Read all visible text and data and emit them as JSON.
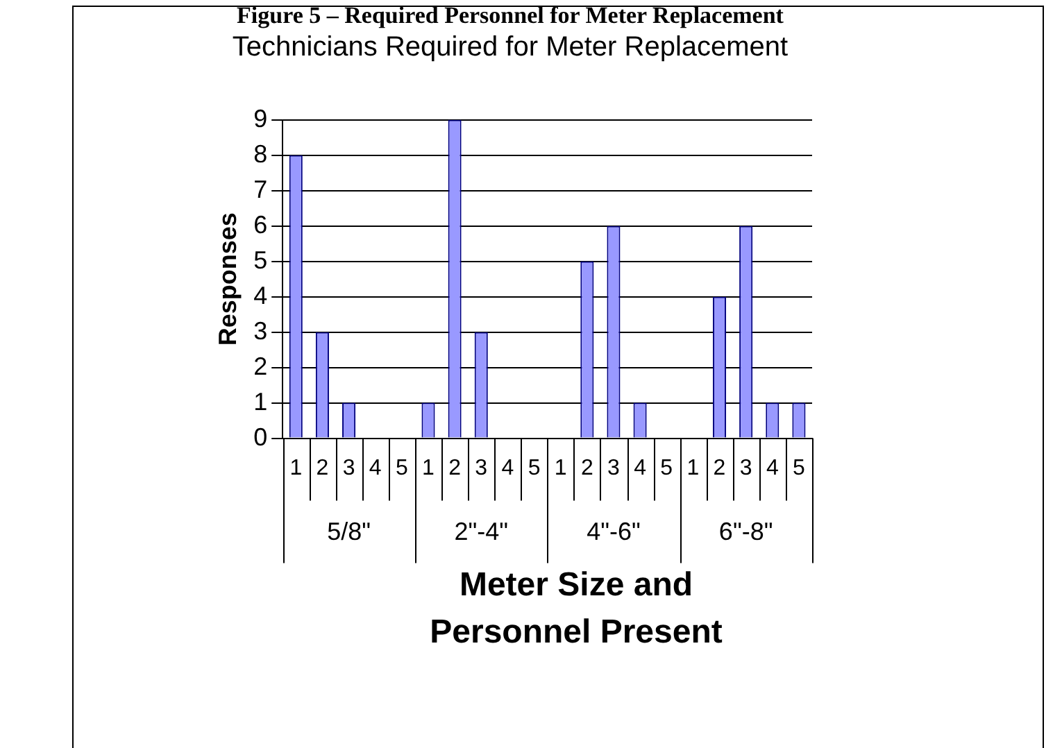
{
  "chart_data": {
    "type": "bar",
    "title": "Figure 5 – Required Personnel for Meter Replacement",
    "subtitle": "Technicians Required for Meter Replacement",
    "xlabel": "Meter Size and Personnel Present",
    "ylabel": "Responses",
    "categories": [
      "1",
      "2",
      "3",
      "4",
      "5",
      "1",
      "2",
      "3",
      "4",
      "5",
      "1",
      "2",
      "3",
      "4",
      "5",
      "1",
      "2",
      "3",
      "4",
      "5"
    ],
    "values": [
      8,
      3,
      1,
      0,
      0,
      1,
      9,
      3,
      0,
      0,
      0,
      5,
      6,
      1,
      0,
      0,
      4,
      6,
      1,
      1
    ],
    "color": "#9999ff",
    "ylim": [
      0,
      9
    ],
    "yticks": [
      0,
      1,
      2,
      3,
      4,
      5,
      6,
      7,
      8,
      9
    ],
    "grid": "y",
    "annotations": [
      "5/8\"",
      "2\"-4\"",
      "4\"-6\"",
      "6\"-8\""
    ]
  }
}
